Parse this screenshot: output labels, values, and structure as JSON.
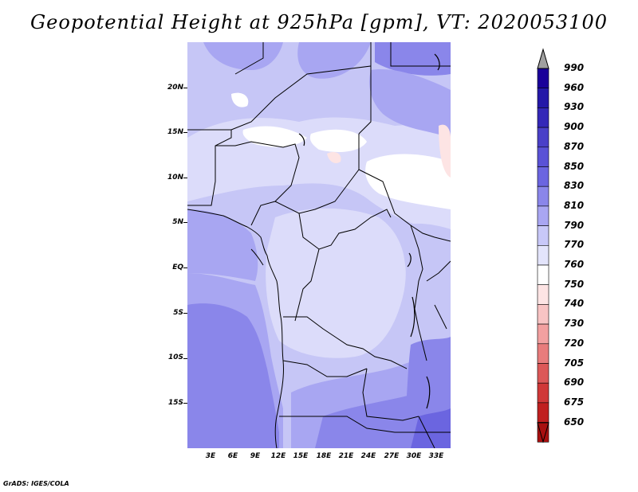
{
  "title": "Geopotential Height at 925hPa [gpm], VT: 2020053100",
  "footer": "GrADS: IGES/COLA",
  "lat_labels": [
    "20N",
    "15N",
    "10N",
    "5N",
    "EQ",
    "5S",
    "10S",
    "15S"
  ],
  "lon_labels": [
    "3E",
    "6E",
    "9E",
    "12E",
    "15E",
    "18E",
    "21E",
    "24E",
    "27E",
    "30E",
    "33E"
  ],
  "colorbar": {
    "levels": [
      "990",
      "960",
      "930",
      "900",
      "870",
      "850",
      "830",
      "810",
      "790",
      "770",
      "760",
      "750",
      "740",
      "730",
      "720",
      "705",
      "690",
      "675",
      "650"
    ],
    "colors": [
      "#1a009a",
      "#2418a8",
      "#3428b8",
      "#4a40c8",
      "#5a52d6",
      "#6b65e0",
      "#8a86ea",
      "#a9a6f2",
      "#c8c8f8",
      "#e3e4fb",
      "#ffffff",
      "#fde4e4",
      "#f8c4c4",
      "#f2a0a0",
      "#e87c7c",
      "#dc5858",
      "#d03838",
      "#c02020",
      "#a81010"
    ],
    "top_arrow_color": "#a0a0a0"
  }
}
